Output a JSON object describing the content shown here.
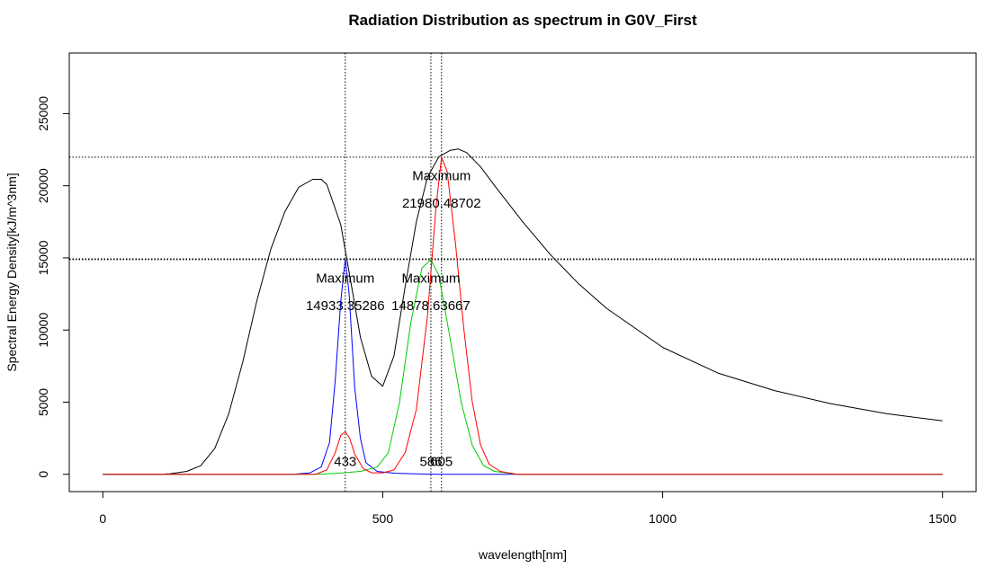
{
  "chart_data": {
    "type": "line",
    "title": "Radiation Distribution as spectrum in G0V_First",
    "xlabel": "wavelength[nm]",
    "ylabel": "Spectral Energy Density[kJ/m^3nm]",
    "xlim": [
      -60,
      1560
    ],
    "ylim": [
      -1200,
      29200
    ],
    "xticks": [
      0,
      500,
      1000,
      1500
    ],
    "yticks": [
      0,
      5000,
      10000,
      15000,
      20000,
      25000
    ],
    "grid": false,
    "series": [
      {
        "color": "#000000",
        "x": [
          0,
          100,
          120,
          150,
          175,
          200,
          225,
          250,
          275,
          300,
          325,
          350,
          375,
          390,
          400,
          425,
          440,
          460,
          480,
          500,
          520,
          540,
          560,
          580,
          600,
          620,
          635,
          650,
          675,
          700,
          750,
          800,
          850,
          900,
          1000,
          1100,
          1200,
          1300,
          1400,
          1500
        ],
        "y": [
          0,
          0,
          40,
          200,
          600,
          1800,
          4200,
          7800,
          12000,
          15600,
          18200,
          19900,
          20450,
          20450,
          20100,
          17300,
          14000,
          9500,
          6800,
          6100,
          8200,
          13000,
          17500,
          20600,
          22000,
          22450,
          22550,
          22300,
          21300,
          20000,
          17500,
          15200,
          13200,
          11500,
          8800,
          7000,
          5800,
          4900,
          4200,
          3700
        ]
      },
      {
        "color": "#0000ff",
        "x": [
          0,
          340,
          370,
          390,
          405,
          415,
          425,
          433,
          440,
          450,
          460,
          470,
          490,
          520,
          560,
          600,
          700,
          1000,
          1500
        ],
        "y": [
          0,
          0,
          100,
          500,
          2200,
          6500,
          12000,
          14933,
          12500,
          6000,
          2500,
          800,
          200,
          80,
          30,
          0,
          0,
          0,
          0
        ],
        "peak_label": "Maximum",
        "peak_value": "14933.35286",
        "peak_x": 433
      },
      {
        "color": "#00cc00",
        "x": [
          0,
          380,
          420,
          460,
          490,
          510,
          530,
          550,
          570,
          586,
          600,
          620,
          640,
          660,
          680,
          700,
          740,
          1500
        ],
        "y": [
          0,
          0,
          80,
          200,
          500,
          1500,
          5000,
          10500,
          14300,
          14879,
          13800,
          9500,
          5000,
          2000,
          600,
          200,
          0,
          0
        ],
        "peak_label": "Maximum",
        "peak_value": "14878.63667",
        "peak_x": 586
      },
      {
        "color": "#ff0000",
        "x": [
          0,
          380,
          400,
          415,
          425,
          433,
          441,
          450,
          465,
          480,
          500,
          520,
          540,
          560,
          580,
          595,
          605,
          615,
          630,
          645,
          660,
          675,
          690,
          710,
          740,
          1500
        ],
        "y": [
          0,
          0,
          300,
          1500,
          2700,
          2950,
          2500,
          1400,
          400,
          100,
          100,
          300,
          1500,
          4500,
          11000,
          18500,
          21980,
          21000,
          16000,
          10000,
          5000,
          2000,
          700,
          200,
          0,
          0
        ],
        "peak_label": "Maximum",
        "peak_value": "21980.48702",
        "peak_x": 605
      }
    ],
    "hlines": [
      14933.35286,
      14878.63667,
      21980.48702
    ],
    "vlines": [
      433,
      586,
      605
    ],
    "vline_labels": [
      "433",
      "586",
      "605"
    ]
  }
}
